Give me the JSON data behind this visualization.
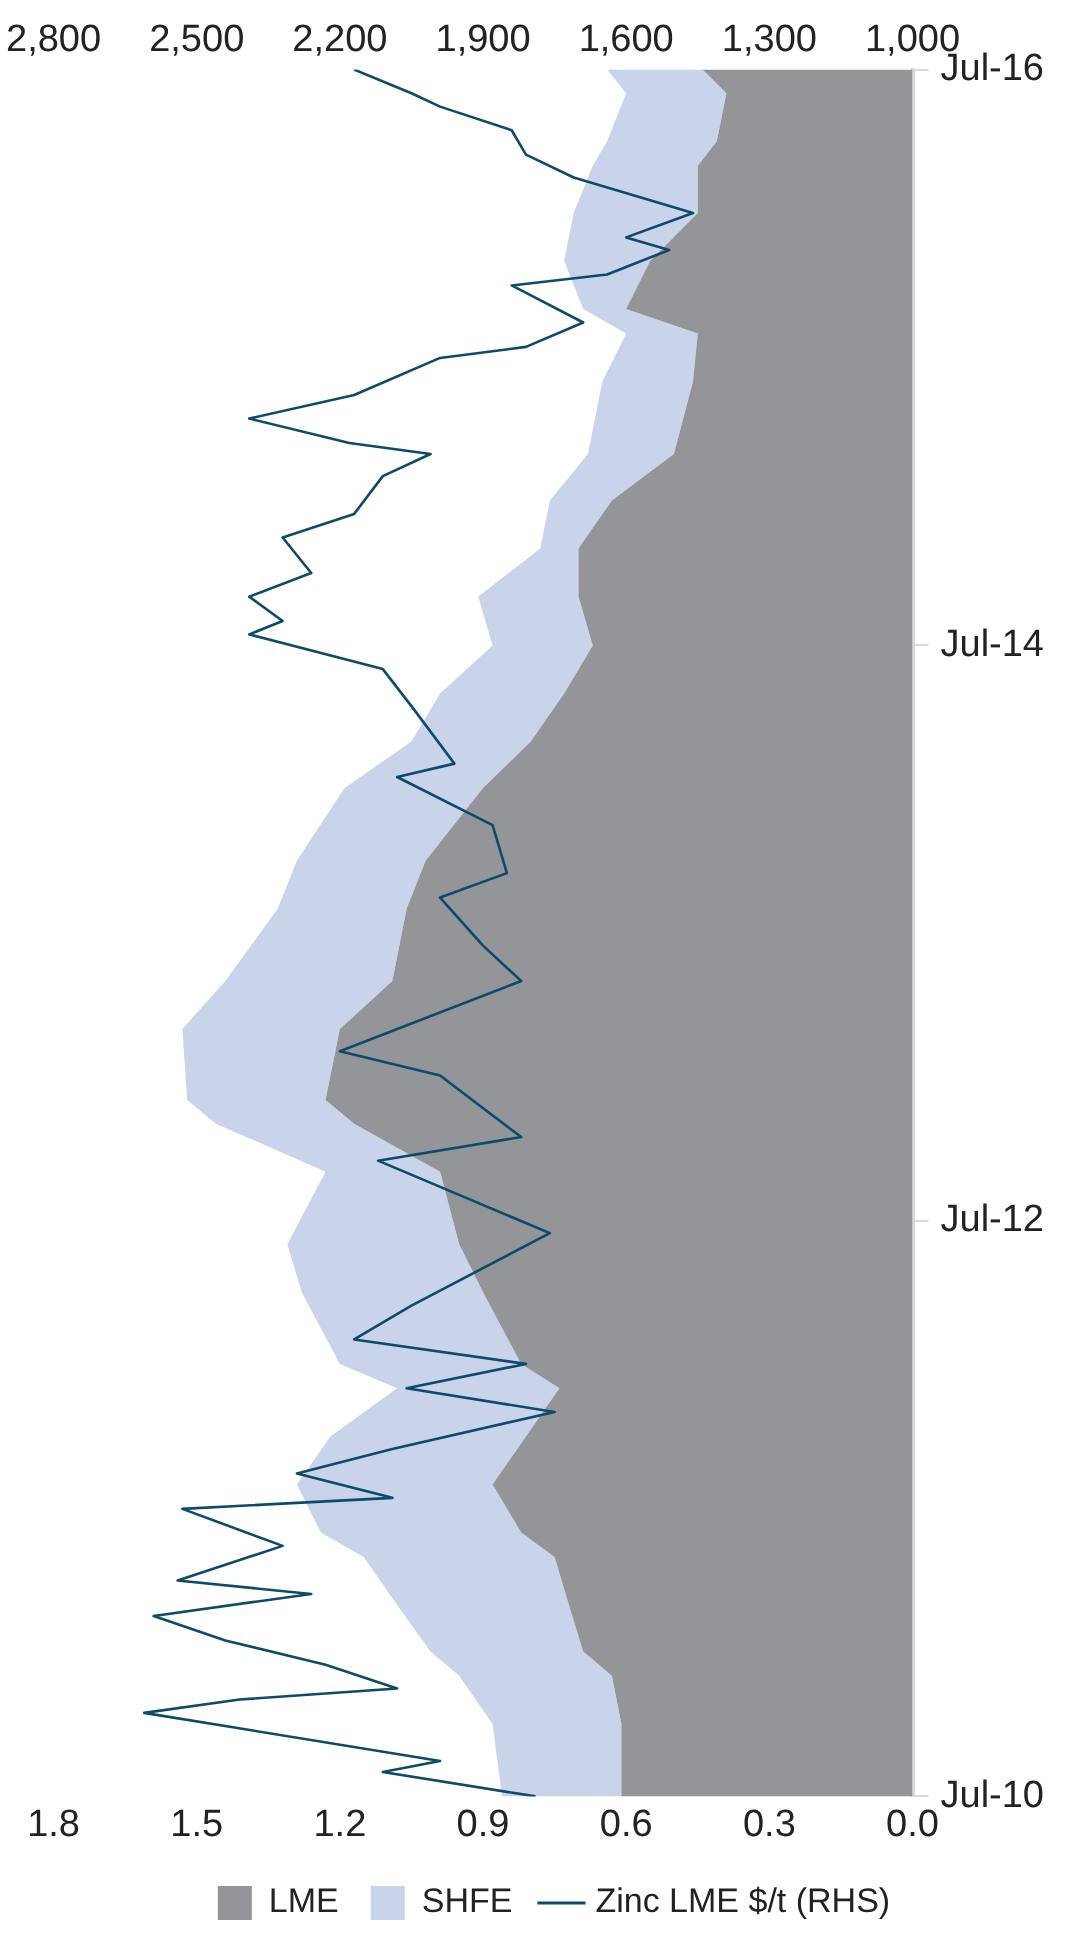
{
  "chart_data": {
    "type": "area",
    "orientation": "horizontal",
    "stacked": true,
    "legend": "bottom",
    "grid": false,
    "marker": "none",
    "x": [
      "2010-07",
      "2010-10",
      "2010-12",
      "2011-01",
      "2011-03",
      "2011-05",
      "2011-06",
      "2011-08",
      "2011-10",
      "2011-12",
      "2012-01",
      "2012-04",
      "2012-06",
      "2012-09",
      "2012-11",
      "2012-12",
      "2013-03",
      "2013-05",
      "2013-08",
      "2013-10",
      "2014-01",
      "2014-03",
      "2014-05",
      "2014-07",
      "2014-09",
      "2014-11",
      "2015-01",
      "2015-03",
      "2015-06",
      "2015-08",
      "2015-09",
      "2015-11",
      "2016-01",
      "2016-03",
      "2016-04",
      "2016-06",
      "2016-07"
    ],
    "ylim": [
      "2010-07",
      "2016-07"
    ],
    "yticks": [
      {
        "value": "2010-07",
        "label": "Jul-10"
      },
      {
        "value": "2012-07",
        "label": "Jul-12"
      },
      {
        "value": "2014-07",
        "label": "Jul-14"
      },
      {
        "value": "2016-07",
        "label": "Jul-16"
      }
    ],
    "xlim": [
      1.8,
      0
    ],
    "xticks": [
      1.8,
      1.5,
      1.2,
      0.9,
      0.6,
      0.3,
      {
        "value": 0,
        "label": "0.0"
      }
    ],
    "x2lim": [
      2800,
      1000
    ],
    "x2ticks": [
      {
        "value": 2800,
        "label": "2,800"
      },
      {
        "value": 2500,
        "label": "2,500"
      },
      {
        "value": 2200,
        "label": "2,200"
      },
      {
        "value": 1900,
        "label": "1,900"
      },
      {
        "value": 1600,
        "label": "1,600"
      },
      {
        "value": 1300,
        "label": "1,300"
      },
      {
        "value": 1000,
        "label": "1,000"
      }
    ],
    "series": [
      {
        "name": "LME",
        "color": "#939598",
        "values": [
          0.61,
          0.61,
          0.63,
          0.69,
          0.72,
          0.75,
          0.82,
          0.88,
          0.81,
          0.74,
          0.82,
          0.9,
          0.95,
          0.99,
          1.17,
          1.23,
          1.2,
          1.09,
          1.06,
          1.02,
          0.9,
          0.8,
          0.73,
          0.67,
          0.7,
          0.7,
          0.63,
          0.5,
          0.46,
          0.45,
          0.6,
          0.55,
          0.45,
          0.45,
          0.41,
          0.39,
          0.44
        ]
      },
      {
        "name": "SHFE",
        "color": "#c9d3ea",
        "values": [
          0.25,
          0.27,
          0.32,
          0.32,
          0.36,
          0.4,
          0.42,
          0.41,
          0.41,
          0.34,
          0.38,
          0.38,
          0.36,
          0.24,
          0.29,
          0.29,
          0.33,
          0.35,
          0.27,
          0.27,
          0.29,
          0.25,
          0.26,
          0.21,
          0.21,
          0.08,
          0.13,
          0.18,
          0.19,
          0.15,
          0.09,
          0.18,
          0.26,
          0.22,
          0.23,
          0.21,
          0.2
        ]
      },
      {
        "name": "Zinc LME $/t (RHS)",
        "type": "line",
        "axis": "x2",
        "color": "#0d4a6b",
        "x": [
          "2010-07-01",
          "2010-08-01",
          "2010-08-15",
          "2010-10-15",
          "2010-11-01",
          "2010-11-15",
          "2010-12-15",
          "2011-01-15",
          "2011-02-15",
          "2011-03-15",
          "2011-04-01",
          "2011-05-15",
          "2011-07-01",
          "2011-07-15",
          "2011-08-15",
          "2011-09-15",
          "2011-11-01",
          "2011-12-01",
          "2012-01-01",
          "2012-02-01",
          "2012-03-15",
          "2012-06-15",
          "2012-09-15",
          "2012-10-15",
          "2013-01-01",
          "2013-02-01",
          "2013-05-01",
          "2013-06-15",
          "2013-08-15",
          "2013-09-15",
          "2013-11-15",
          "2014-01-15",
          "2014-02-01",
          "2014-04-15",
          "2014-06-01",
          "2014-07-15",
          "2014-08-01",
          "2014-09-01",
          "2014-10-01",
          "2014-11-15",
          "2014-12-15",
          "2015-02-01",
          "2015-03-01",
          "2015-03-15",
          "2015-04-15",
          "2015-05-15",
          "2015-07-01",
          "2015-07-15",
          "2015-08-15",
          "2015-10-01",
          "2015-10-15",
          "2015-11-15",
          "2015-12-01",
          "2016-01-01",
          "2016-02-15",
          "2016-03-15",
          "2016-04-15",
          "2016-05-15",
          "2016-06-01",
          "2016-07-01"
        ],
        "values": [
          1790,
          2110,
          1990,
          2610,
          2410,
          2080,
          2230,
          2440,
          2590,
          2260,
          2540,
          2320,
          2530,
          2090,
          2290,
          2090,
          1750,
          2060,
          1810,
          2170,
          2050,
          1760,
          2120,
          1820,
          1990,
          2200,
          1820,
          1900,
          1990,
          1850,
          1880,
          2080,
          1960,
          2050,
          2110,
          2390,
          2320,
          2390,
          2260,
          2320,
          2170,
          2110,
          2010,
          2180,
          2390,
          2170,
          1990,
          1810,
          1690,
          1840,
          1640,
          1510,
          1600,
          1460,
          1710,
          1810,
          1840,
          1990,
          2050,
          2170
        ]
      }
    ]
  }
}
